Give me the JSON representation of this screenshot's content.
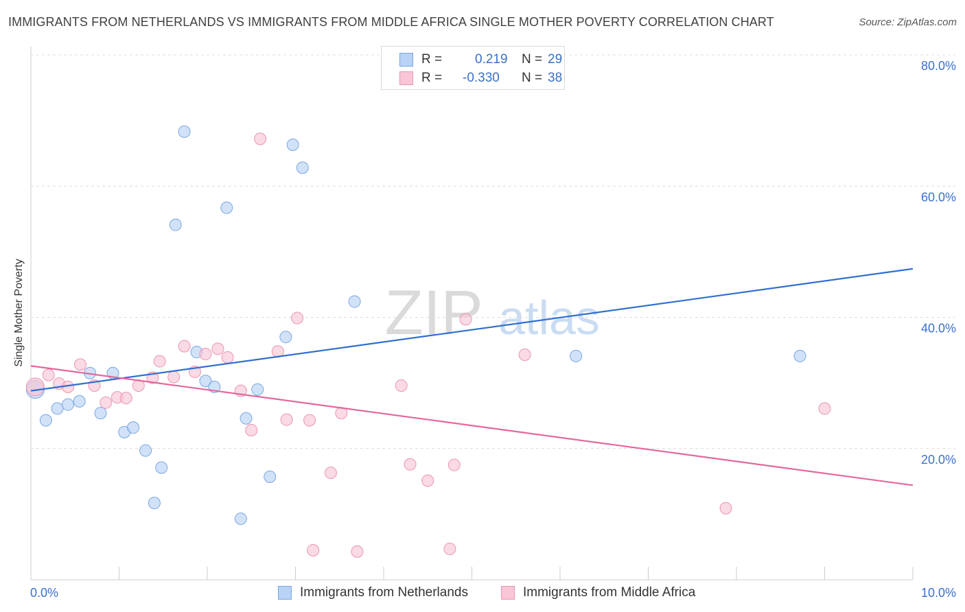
{
  "title": "IMMIGRANTS FROM NETHERLANDS VS IMMIGRANTS FROM MIDDLE AFRICA SINGLE MOTHER POVERTY CORRELATION CHART",
  "source": "Source: ZipAtlas.com",
  "watermark": {
    "zip": "ZIP",
    "atlas": "atlas"
  },
  "legend": {
    "netherlands": {
      "r_label": "R =",
      "r_value": "0.219",
      "n_label": "N =",
      "n_value": "29"
    },
    "middle_africa": {
      "r_label": "R =",
      "r_value": "-0.330",
      "n_label": "N =",
      "n_value": "38"
    }
  },
  "colors": {
    "blue_fill": "#b8d3f5",
    "blue_stroke": "#7aa6e0",
    "blue_line": "#2f6fd0",
    "pink_fill": "#f8c6d6",
    "pink_stroke": "#ea94b3",
    "pink_line": "#e4679a",
    "tick_label": "#3a6fcb",
    "grid": "#dcdcdc"
  },
  "chart_data": {
    "type": "scatter",
    "title": "IMMIGRANTS FROM NETHERLANDS VS IMMIGRANTS FROM MIDDLE AFRICA SINGLE MOTHER POVERTY CORRELATION CHART",
    "xlabel": "",
    "ylabel": "Single Mother Poverty",
    "xlim": [
      0,
      10
    ],
    "ylim": [
      0,
      80
    ],
    "x_tick_labels": [
      "0.0%",
      "10.0%"
    ],
    "y_ticks": [
      20,
      40,
      60,
      80
    ],
    "y_tick_labels": [
      "20.0%",
      "40.0%",
      "60.0%",
      "80.0%"
    ],
    "grid": true,
    "series": [
      {
        "name": "Immigrants from Netherlands",
        "color": "#b8d3f5",
        "points": [
          [
            0.05,
            29.0
          ],
          [
            0.17,
            24.3
          ],
          [
            0.3,
            26.1
          ],
          [
            0.42,
            26.7
          ],
          [
            0.55,
            27.2
          ],
          [
            0.67,
            31.5
          ],
          [
            0.79,
            25.4
          ],
          [
            0.93,
            31.5
          ],
          [
            1.06,
            22.5
          ],
          [
            1.16,
            23.2
          ],
          [
            1.3,
            19.7
          ],
          [
            1.48,
            17.1
          ],
          [
            1.4,
            11.7
          ],
          [
            1.64,
            54.1
          ],
          [
            1.74,
            68.3
          ],
          [
            1.88,
            34.7
          ],
          [
            1.98,
            30.3
          ],
          [
            2.08,
            29.4
          ],
          [
            2.22,
            56.7
          ],
          [
            2.38,
            9.3
          ],
          [
            2.44,
            24.6
          ],
          [
            2.57,
            29.0
          ],
          [
            2.71,
            15.7
          ],
          [
            2.89,
            37.0
          ],
          [
            2.97,
            66.3
          ],
          [
            3.08,
            62.8
          ],
          [
            3.67,
            42.4
          ],
          [
            6.18,
            34.1
          ],
          [
            8.72,
            34.1
          ]
        ]
      },
      {
        "name": "Immigrants from Middle Africa",
        "color": "#f8c6d6",
        "points": [
          [
            0.05,
            29.4
          ],
          [
            0.2,
            31.2
          ],
          [
            0.32,
            29.9
          ],
          [
            0.42,
            29.4
          ],
          [
            0.56,
            32.8
          ],
          [
            0.72,
            29.6
          ],
          [
            0.85,
            27.0
          ],
          [
            0.98,
            27.8
          ],
          [
            1.08,
            27.7
          ],
          [
            1.22,
            29.6
          ],
          [
            1.38,
            30.8
          ],
          [
            1.46,
            33.3
          ],
          [
            1.62,
            30.9
          ],
          [
            1.74,
            35.6
          ],
          [
            1.86,
            31.7
          ],
          [
            1.98,
            34.4
          ],
          [
            2.12,
            35.2
          ],
          [
            2.23,
            33.9
          ],
          [
            2.38,
            28.8
          ],
          [
            2.5,
            22.8
          ],
          [
            2.6,
            67.2
          ],
          [
            2.8,
            34.8
          ],
          [
            2.9,
            24.4
          ],
          [
            3.02,
            39.9
          ],
          [
            3.16,
            24.3
          ],
          [
            3.2,
            4.5
          ],
          [
            3.4,
            16.3
          ],
          [
            3.52,
            25.4
          ],
          [
            3.7,
            4.3
          ],
          [
            4.2,
            29.6
          ],
          [
            4.3,
            17.6
          ],
          [
            4.5,
            15.1
          ],
          [
            4.75,
            4.7
          ],
          [
            4.8,
            17.5
          ],
          [
            4.93,
            39.7
          ],
          [
            5.6,
            34.3
          ],
          [
            7.88,
            10.9
          ],
          [
            9.0,
            26.1
          ]
        ]
      }
    ],
    "trend_lines": [
      {
        "name": "Immigrants from Netherlands",
        "x": [
          0,
          10
        ],
        "y": [
          28.8,
          47.4
        ]
      },
      {
        "name": "Immigrants from Middle Africa",
        "x": [
          0,
          10
        ],
        "y": [
          32.6,
          14.4
        ]
      }
    ]
  }
}
